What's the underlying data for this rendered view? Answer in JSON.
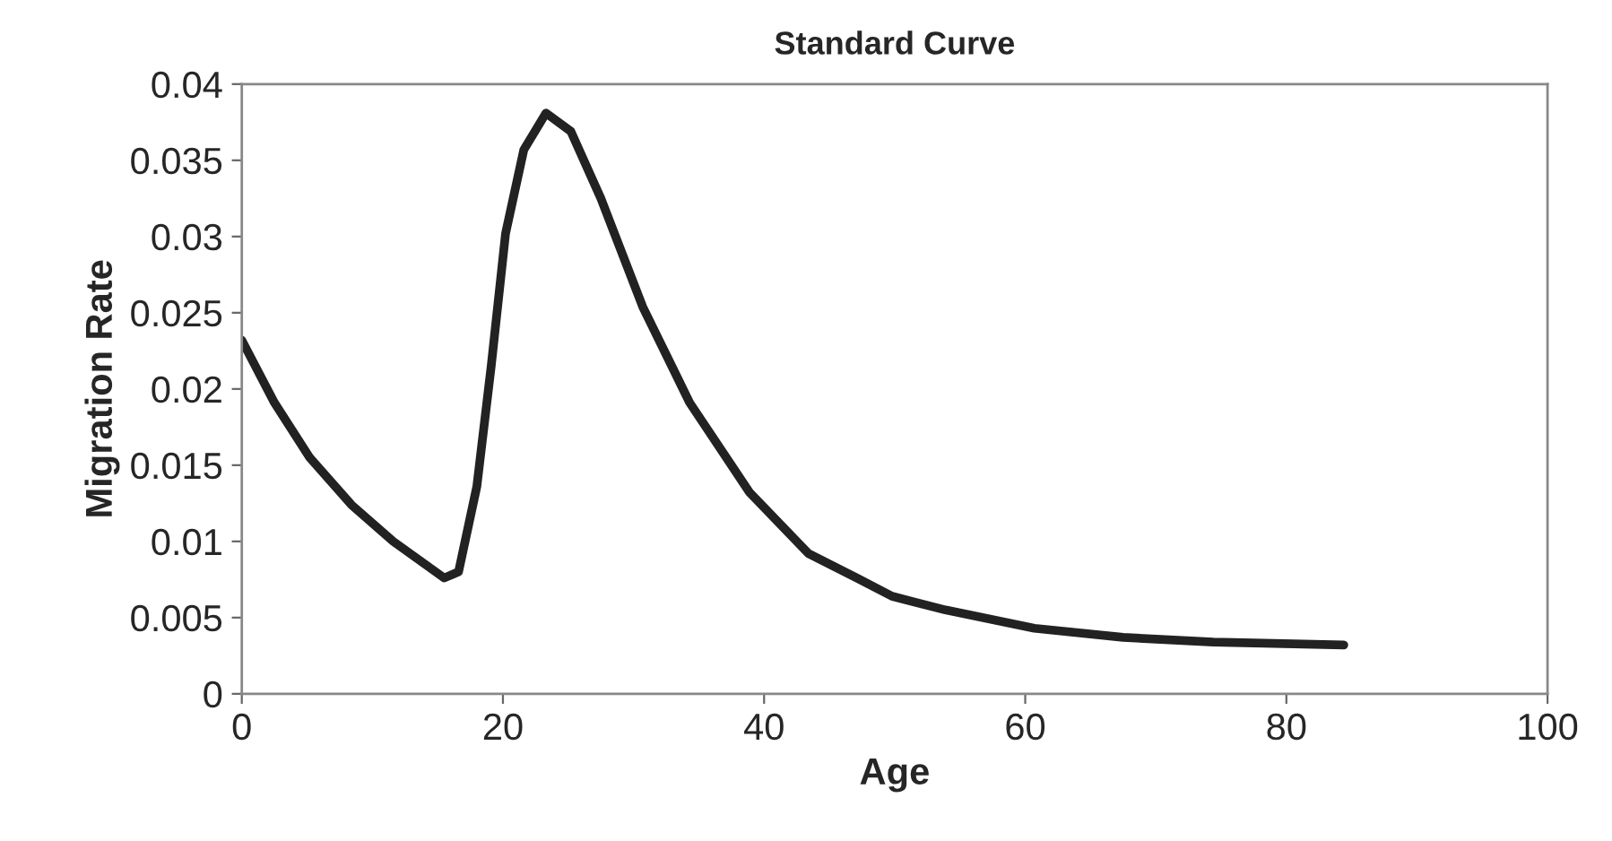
{
  "chart_data": {
    "type": "line",
    "title": "Standard Curve",
    "xlabel": "Age",
    "ylabel": "Migration Rate",
    "xlim": [
      0,
      100
    ],
    "xticks": [
      0,
      20,
      40,
      60,
      80,
      100
    ],
    "ylim": [
      0,
      0.04
    ],
    "yticks": [
      {
        "value": 0,
        "label": "0"
      },
      0.005,
      0.01,
      0.015,
      0.02,
      0.025,
      0.03,
      0.035,
      0.04
    ],
    "grid": false,
    "legend": false,
    "marker": "none",
    "line_style": "solid",
    "series": [
      {
        "color": "#222222",
        "x": [
          0,
          2.5,
          5.2,
          8.4,
          11.6,
          15.5,
          16.6,
          18,
          19.1,
          20.2,
          21.6,
          23.3,
          25.2,
          27.5,
          30.7,
          34.3,
          38.9,
          43.4,
          47.1,
          49.8,
          53.9,
          60.7,
          67.5,
          74.4,
          84.4
        ],
        "values": [
          0.0232,
          0.0191,
          0.0155,
          0.0124,
          0.01,
          0.0076,
          0.008,
          0.0136,
          0.0215,
          0.0302,
          0.0357,
          0.0381,
          0.0369,
          0.0325,
          0.0254,
          0.0191,
          0.0132,
          0.0092,
          0.0076,
          0.0064,
          0.0055,
          0.0043,
          0.0037,
          0.0034,
          0.0032
        ]
      }
    ]
  }
}
